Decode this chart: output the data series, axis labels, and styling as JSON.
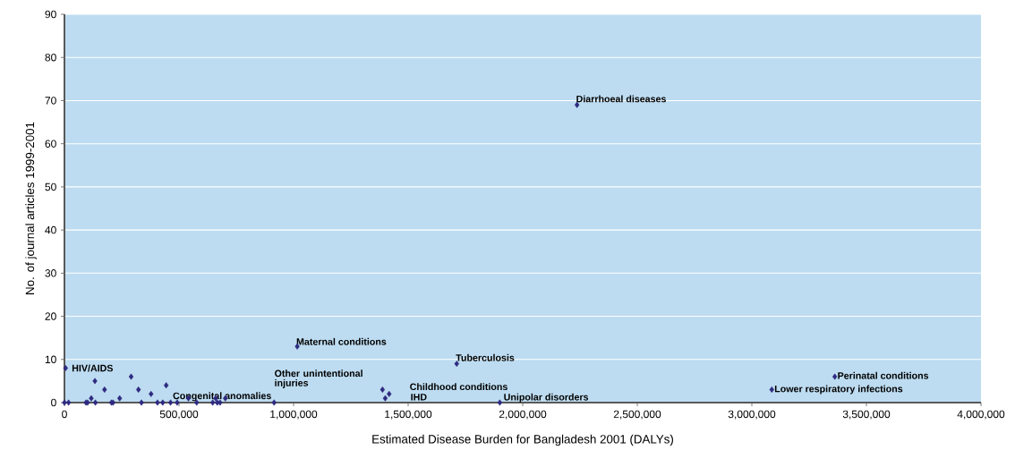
{
  "chart_data": {
    "type": "scatter",
    "xlabel": "Estimated Disease Burden for Bangladesh 2001 (DALYs)",
    "ylabel": "No. of journal articles 1999-2001",
    "x": [
      5000,
      0,
      18000,
      94000,
      101000,
      117000,
      133000,
      135000,
      175000,
      205000,
      212000,
      241000,
      291000,
      323000,
      336000,
      378000,
      406000,
      429000,
      444000,
      463000,
      492000,
      541000,
      577000,
      647000,
      660000,
      667000,
      679000,
      702000,
      915000,
      1016000,
      1712000,
      1388000,
      1417000,
      1400000,
      1900000,
      2237000,
      3362000,
      3087000
    ],
    "values": [
      8,
      0,
      0,
      0,
      0,
      1,
      5,
      0,
      3,
      0,
      0,
      1,
      6,
      3,
      0,
      2,
      0,
      0,
      4,
      0,
      0,
      1,
      0,
      0,
      1,
      0,
      0,
      1,
      0,
      13,
      9,
      3,
      2,
      1,
      0,
      69,
      6,
      3
    ],
    "color": "#2e2a80",
    "marker": "diamond",
    "xlim": [
      0,
      4000000
    ],
    "ylim": [
      0,
      90
    ],
    "xticks": [
      0,
      {
        "value": 500000,
        "label": "500,000"
      },
      {
        "value": 1000000,
        "label": "1,000,000"
      },
      {
        "value": 1500000,
        "label": "1,500,000"
      },
      {
        "value": 2000000,
        "label": "2,000,000"
      },
      {
        "value": 2500000,
        "label": "2,500,000"
      },
      {
        "value": 3000000,
        "label": "3,000,000"
      },
      {
        "value": 3500000,
        "label": "3,500,000"
      },
      {
        "value": 4000000,
        "label": "4,000,000"
      }
    ],
    "yticks": [
      0,
      10,
      20,
      30,
      40,
      50,
      60,
      70,
      80,
      90
    ],
    "grid": "y",
    "annotations": [
      {
        "text": "Diarrhoeal diseases",
        "x": 2237000,
        "y": 69
      },
      {
        "text": "Maternal conditions",
        "x": 1016000,
        "y": 13
      },
      {
        "text": "Tuberculosis",
        "x": 1712000,
        "y": 9
      },
      {
        "text": "Other unintentional injuries",
        "x": 1388000,
        "y": 3
      },
      {
        "text": "Childhood conditions",
        "x": 1417000,
        "y": 2
      },
      {
        "text": "IHD",
        "x": 1400000,
        "y": 1
      },
      {
        "text": "Congenital anomalies",
        "x": 915000,
        "y": 0
      },
      {
        "text": "Unipolar disorders",
        "x": 1900000,
        "y": 0
      },
      {
        "text": "Perinatal conditions",
        "x": 3362000,
        "y": 6
      },
      {
        "text": "Lower respiratory infections",
        "x": 3087000,
        "y": 3
      },
      {
        "text": "HIV/AIDS",
        "x": 5000,
        "y": 8
      }
    ]
  }
}
